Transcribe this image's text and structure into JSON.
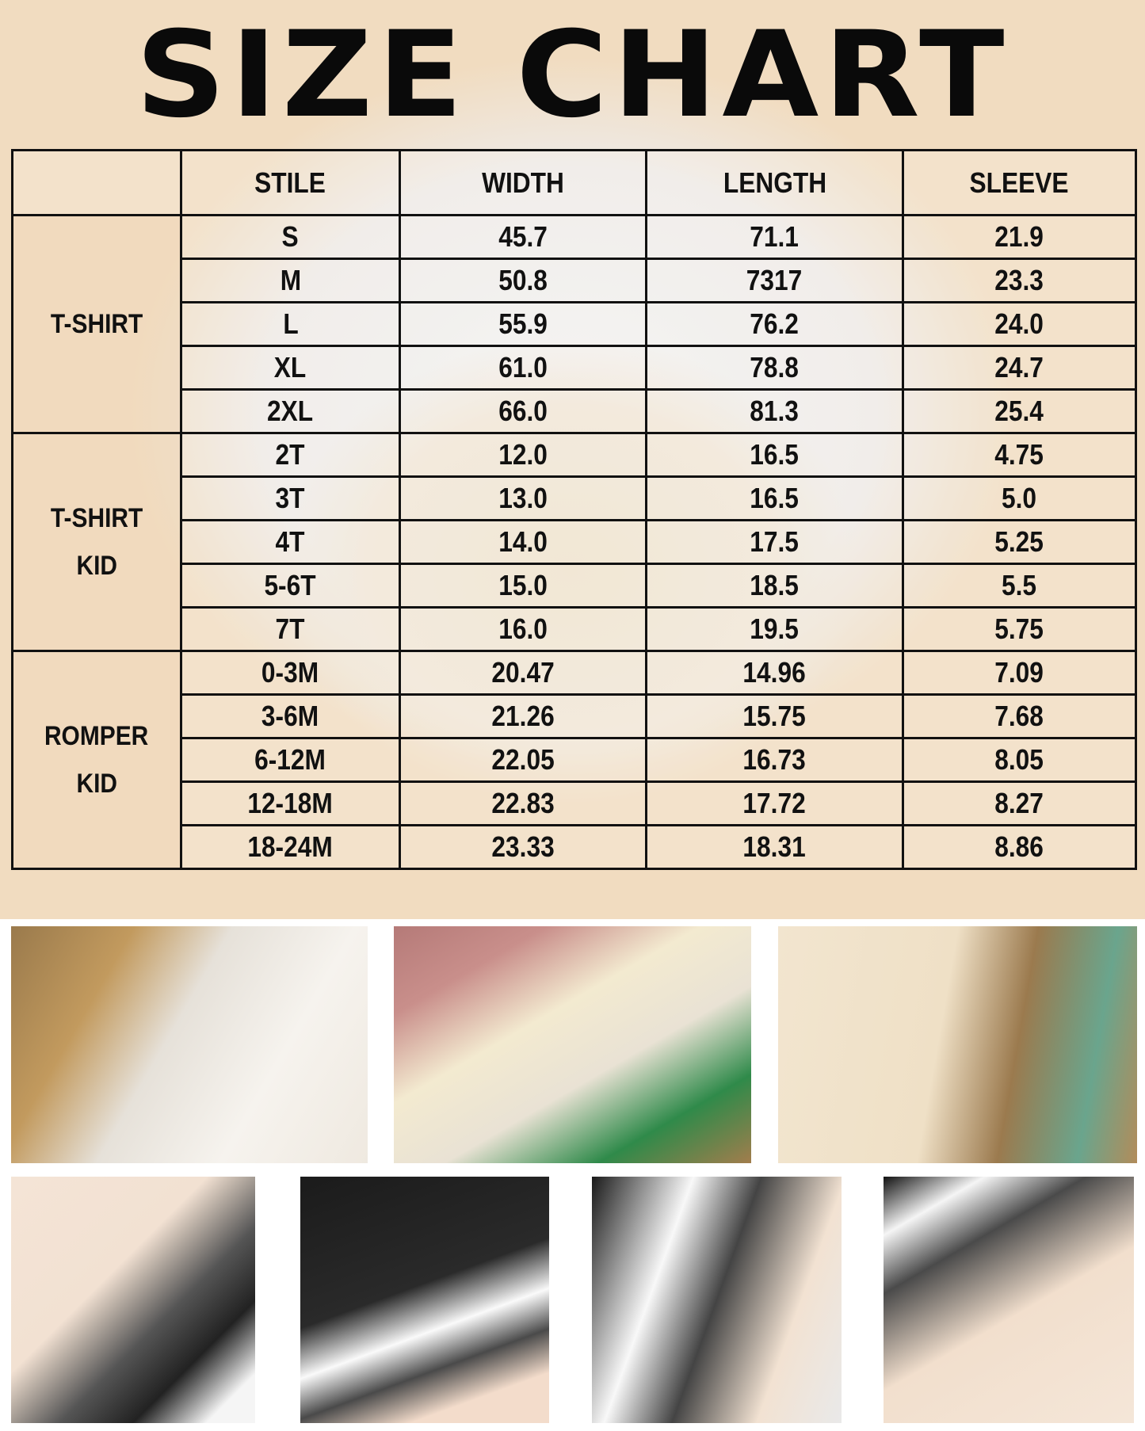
{
  "title": "SIZE CHART",
  "headers": [
    "",
    "STILE",
    "WIDTH",
    "LENGTH",
    "SLEEVE"
  ],
  "groups": [
    {
      "label_lines": [
        "T-SHIRT"
      ],
      "rows": [
        [
          "S",
          "45.7",
          "71.1",
          "21.9"
        ],
        [
          "M",
          "50.8",
          "7317",
          "23.3"
        ],
        [
          "L",
          "55.9",
          "76.2",
          "24.0"
        ],
        [
          "XL",
          "61.0",
          "78.8",
          "24.7"
        ],
        [
          "2XL",
          "66.0",
          "81.3",
          "25.4"
        ]
      ]
    },
    {
      "label_lines": [
        "T-SHIRT",
        "KID"
      ],
      "rows": [
        [
          "2T",
          "12.0",
          "16.5",
          "4.75"
        ],
        [
          "3T",
          "13.0",
          "16.5",
          "5.0"
        ],
        [
          "4T",
          "14.0",
          "17.5",
          "5.25"
        ],
        [
          "5-6T",
          "15.0",
          "18.5",
          "5.5"
        ],
        [
          "7T",
          "16.0",
          "19.5",
          "5.75"
        ]
      ]
    },
    {
      "label_lines": [
        "ROMPER",
        "KID"
      ],
      "rows": [
        [
          "0-3M",
          "20.47",
          "14.96",
          "7.09"
        ],
        [
          "3-6M",
          "21.26",
          "15.75",
          "7.68"
        ],
        [
          "6-12M",
          "22.05",
          "16.73",
          "8.05"
        ],
        [
          "12-18M",
          "22.83",
          "17.72",
          "8.27"
        ],
        [
          "18-24M",
          "23.33",
          "18.31",
          "8.86"
        ]
      ]
    }
  ]
}
